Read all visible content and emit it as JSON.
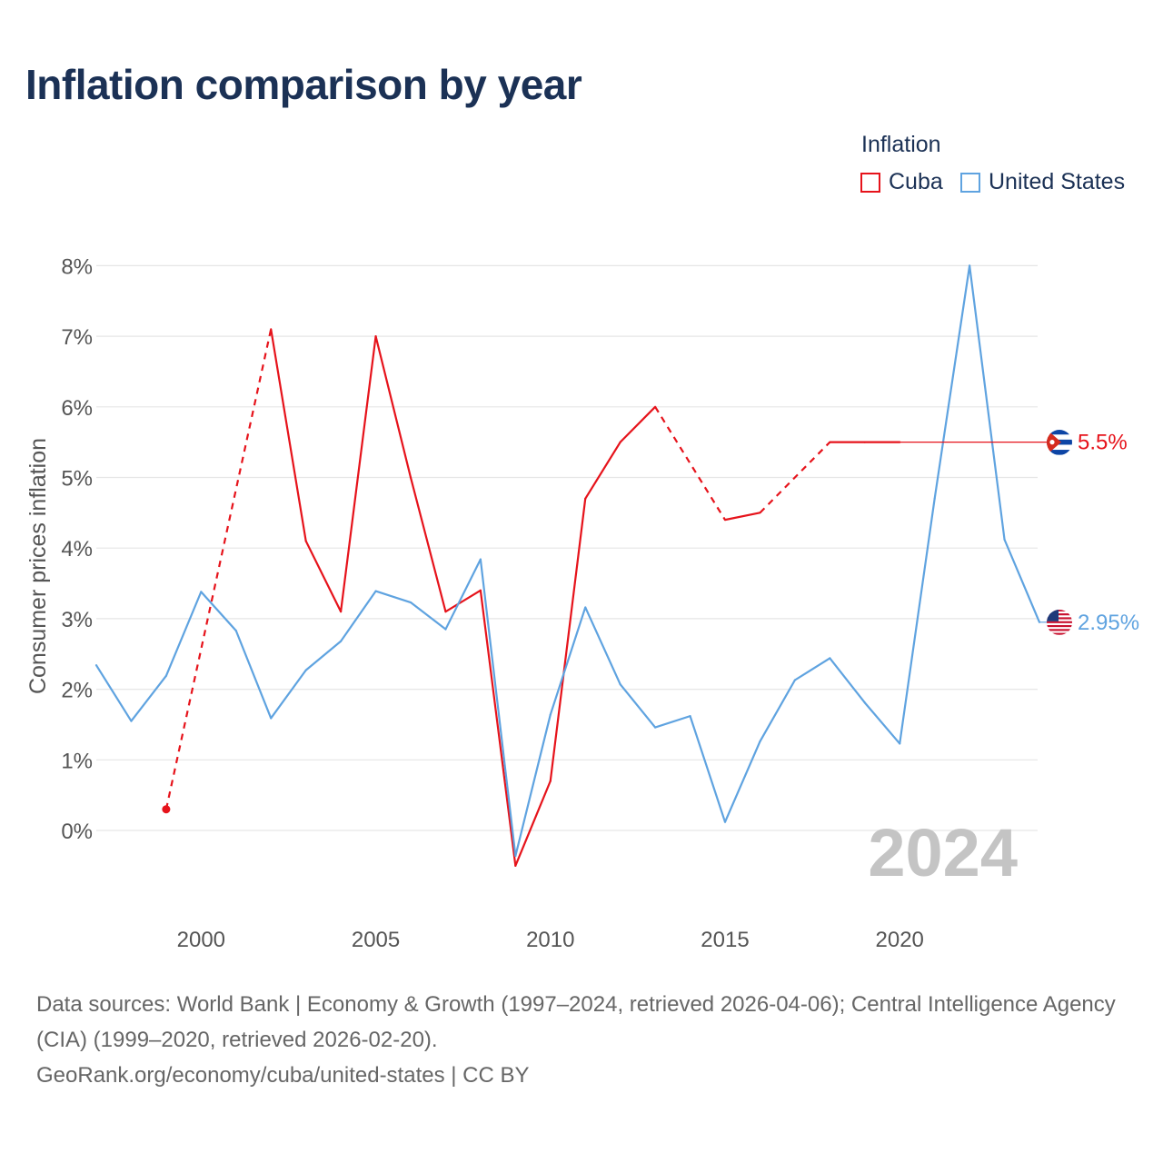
{
  "title": "Inflation comparison by year",
  "legend": {
    "title": "Inflation",
    "items": [
      {
        "name": "Cuba",
        "color": "#e6131b"
      },
      {
        "name": "United States",
        "color": "#5fa3e0"
      }
    ]
  },
  "footer": {
    "sources": "Data sources: World Bank | Economy & Growth (1997–2024, retrieved 2026-04-06); Central Intelligence Agency (CIA) (1999–2020, retrieved 2026-02-20).",
    "credit": "GeoRank.org/economy/cuba/united-states | CC BY"
  },
  "chart_data": {
    "type": "line",
    "title": "Inflation comparison by year",
    "xlabel": "",
    "ylabel": "Consumer prices inflation",
    "xlim": [
      1997,
      2024
    ],
    "ylim": [
      -1.2,
      8
    ],
    "grid": true,
    "x_ticks": [
      {
        "value": 2000,
        "label": "2000"
      },
      {
        "value": 2005,
        "label": "2005"
      },
      {
        "value": 2010,
        "label": "2010"
      },
      {
        "value": 2015,
        "label": "2015"
      },
      {
        "value": 2020,
        "label": "2020"
      }
    ],
    "y_ticks": [
      {
        "value": 0,
        "label": "0%"
      },
      {
        "value": 1,
        "label": "1%"
      },
      {
        "value": 2,
        "label": "2%"
      },
      {
        "value": 3,
        "label": "3%"
      },
      {
        "value": 4,
        "label": "4%"
      },
      {
        "value": 5,
        "label": "5%"
      },
      {
        "value": 6,
        "label": "6%"
      },
      {
        "value": 7,
        "label": "7%"
      },
      {
        "value": 8,
        "label": "8%"
      }
    ],
    "year_watermark": "2024",
    "series": [
      {
        "name": "Cuba",
        "color": "#e6131b",
        "flag": "cuba",
        "end_label": "5.5%",
        "end_value": 5.5,
        "x": [
          1999,
          2002,
          2003,
          2004,
          2005,
          2006,
          2007,
          2008,
          2009,
          2010,
          2011,
          2012,
          2013,
          2015,
          2016,
          2018,
          2019,
          2020
        ],
        "y": [
          0.3,
          7.1,
          4.1,
          3.1,
          7.0,
          5.0,
          3.1,
          3.4,
          -0.5,
          0.7,
          4.7,
          5.5,
          6.0,
          4.4,
          4.5,
          5.5,
          5.5,
          5.5
        ],
        "dashed_gaps": [
          [
            1999,
            2002
          ],
          [
            2013,
            2015
          ],
          [
            2016,
            2018
          ]
        ]
      },
      {
        "name": "United States",
        "color": "#5fa3e0",
        "flag": "us",
        "end_label": "2.95%",
        "end_value": 2.95,
        "x": [
          1997,
          1998,
          1999,
          2000,
          2001,
          2002,
          2003,
          2004,
          2005,
          2006,
          2007,
          2008,
          2009,
          2010,
          2011,
          2012,
          2013,
          2014,
          2015,
          2016,
          2017,
          2018,
          2019,
          2020,
          2021,
          2022,
          2023,
          2024
        ],
        "y": [
          2.34,
          1.55,
          2.19,
          3.38,
          2.83,
          1.59,
          2.27,
          2.68,
          3.39,
          3.23,
          2.85,
          3.84,
          -0.36,
          1.64,
          3.16,
          2.07,
          1.46,
          1.62,
          0.12,
          1.26,
          2.13,
          2.44,
          1.81,
          1.23,
          4.7,
          8.0,
          4.12,
          2.95
        ],
        "dashed_gaps": []
      }
    ]
  }
}
